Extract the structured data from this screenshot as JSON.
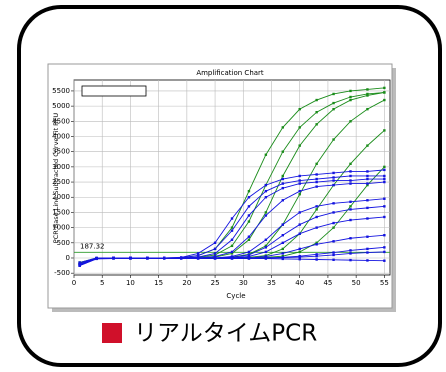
{
  "chart_data": {
    "type": "line",
    "title": "Amplification Chart",
    "x_label": "Cycle",
    "y_label": "PCR Base Line Subtracted Curve Fit RFU",
    "x": [
      1,
      4,
      7,
      10,
      13,
      16,
      19,
      22,
      25,
      28,
      31,
      34,
      37,
      40,
      43,
      46,
      49,
      52,
      55
    ],
    "xlim": [
      0,
      56
    ],
    "xticks": [
      0,
      5,
      10,
      15,
      20,
      25,
      30,
      35,
      40,
      45,
      50,
      55
    ],
    "ylim": [
      -560,
      5860
    ],
    "yticks": [
      -500,
      0,
      500,
      1000,
      1500,
      2000,
      2500,
      3000,
      3500,
      4000,
      4500,
      5000,
      5500
    ],
    "grid": true,
    "threshold": 187.32,
    "threshold_color": "#2a9a2a",
    "series": [
      {
        "color": "#1a8c1a",
        "values": [
          -200,
          -20,
          0,
          0,
          0,
          0,
          10,
          80,
          300,
          1000,
          2200,
          3400,
          4300,
          4900,
          5200,
          5400,
          5500,
          5550,
          5600
        ]
      },
      {
        "color": "#1a8c1a",
        "values": [
          -150,
          -10,
          0,
          0,
          0,
          0,
          0,
          20,
          100,
          400,
          1200,
          2400,
          3500,
          4300,
          4800,
          5100,
          5300,
          5400,
          5450
        ]
      },
      {
        "color": "#1a8c1a",
        "values": [
          -200,
          -20,
          0,
          0,
          0,
          0,
          0,
          0,
          30,
          150,
          600,
          1500,
          2700,
          3700,
          4400,
          4900,
          5200,
          5350,
          5450
        ]
      },
      {
        "color": "#1a8c1a",
        "values": [
          -180,
          -10,
          0,
          0,
          0,
          0,
          0,
          0,
          0,
          30,
          120,
          400,
          1100,
          2100,
          3100,
          3900,
          4500,
          4900,
          5200
        ]
      },
      {
        "color": "#1a8c1a",
        "values": [
          -200,
          -20,
          0,
          0,
          0,
          0,
          0,
          0,
          0,
          0,
          20,
          80,
          300,
          800,
          1600,
          2400,
          3100,
          3700,
          4200
        ]
      },
      {
        "color": "#1a8c1a",
        "values": [
          -150,
          0,
          0,
          0,
          0,
          0,
          0,
          0,
          0,
          0,
          0,
          20,
          60,
          200,
          500,
          1000,
          1700,
          2400,
          3000
        ]
      },
      {
        "color": "#1414e0",
        "values": [
          -250,
          -20,
          0,
          0,
          0,
          0,
          20,
          150,
          500,
          1300,
          2000,
          2400,
          2600,
          2700,
          2750,
          2800,
          2850,
          2850,
          2900
        ]
      },
      {
        "color": "#1414e0",
        "values": [
          -200,
          -10,
          0,
          0,
          0,
          0,
          10,
          80,
          300,
          900,
          1700,
          2200,
          2450,
          2550,
          2600,
          2650,
          2700,
          2700,
          2700
        ]
      },
      {
        "color": "#1414e0",
        "values": [
          -220,
          -10,
          0,
          0,
          0,
          0,
          0,
          30,
          150,
          600,
          1400,
          2000,
          2300,
          2450,
          2500,
          2550,
          2550,
          2600,
          2600
        ]
      },
      {
        "color": "#1414e0",
        "values": [
          -250,
          -20,
          0,
          0,
          0,
          0,
          0,
          0,
          50,
          200,
          700,
          1400,
          1900,
          2200,
          2350,
          2400,
          2450,
          2450,
          2500
        ]
      },
      {
        "color": "#1414e0",
        "values": [
          -200,
          -10,
          0,
          0,
          0,
          0,
          0,
          0,
          0,
          50,
          200,
          600,
          1100,
          1500,
          1700,
          1800,
          1850,
          1900,
          1950
        ]
      },
      {
        "color": "#1414e0",
        "values": [
          -200,
          -10,
          0,
          0,
          0,
          0,
          0,
          0,
          0,
          20,
          100,
          350,
          750,
          1100,
          1350,
          1500,
          1600,
          1650,
          1700
        ]
      },
      {
        "color": "#1414e0",
        "values": [
          -250,
          -20,
          0,
          0,
          0,
          0,
          0,
          0,
          0,
          0,
          50,
          200,
          500,
          800,
          1000,
          1150,
          1250,
          1300,
          1350
        ]
      },
      {
        "color": "#1414e0",
        "values": [
          -200,
          -10,
          0,
          0,
          0,
          0,
          0,
          0,
          0,
          0,
          0,
          50,
          150,
          300,
          450,
          550,
          650,
          700,
          750
        ]
      },
      {
        "color": "#1414e0",
        "values": [
          -150,
          0,
          0,
          0,
          0,
          0,
          0,
          0,
          0,
          0,
          0,
          0,
          20,
          60,
          120,
          180,
          250,
          300,
          350
        ]
      },
      {
        "color": "#1414e0",
        "values": [
          -250,
          -30,
          -20,
          -20,
          -20,
          -20,
          -20,
          -20,
          -20,
          -20,
          -20,
          -20,
          -30,
          -40,
          -50,
          -60,
          -70,
          -80,
          -90
        ]
      },
      {
        "color": "#1414e0",
        "values": [
          -200,
          0,
          0,
          0,
          0,
          0,
          0,
          0,
          0,
          0,
          0,
          0,
          10,
          30,
          60,
          100,
          150,
          180,
          200
        ]
      }
    ]
  },
  "caption": "リアルタイムPCR",
  "caption_color": "#d0102a"
}
